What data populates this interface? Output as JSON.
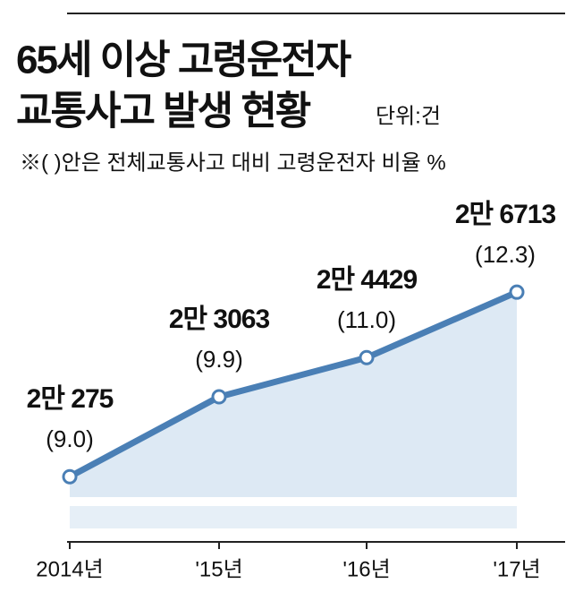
{
  "chart_data": {
    "type": "line",
    "title": [
      "65세 이상 고령운전자",
      "교통사고 발생 현황"
    ],
    "unit": "단위:건",
    "subtitle": "※(  )안은 전체교통사고 대비 고령운전자 비율 %",
    "categories": [
      "2014년",
      "'15년",
      "'16년",
      "'17년"
    ],
    "series": [
      {
        "color": "#4a7fb5",
        "values": [
          20275,
          23063,
          24429,
          26713
        ],
        "value_labels": [
          "2만 275",
          "2만 3063",
          "2만 4429",
          "2만 6713"
        ]
      }
    ],
    "ratio_labels": [
      "(9.0)",
      "(9.9)",
      "(11.0)",
      "(12.3)"
    ],
    "ylim": [
      18000,
      27500
    ]
  }
}
